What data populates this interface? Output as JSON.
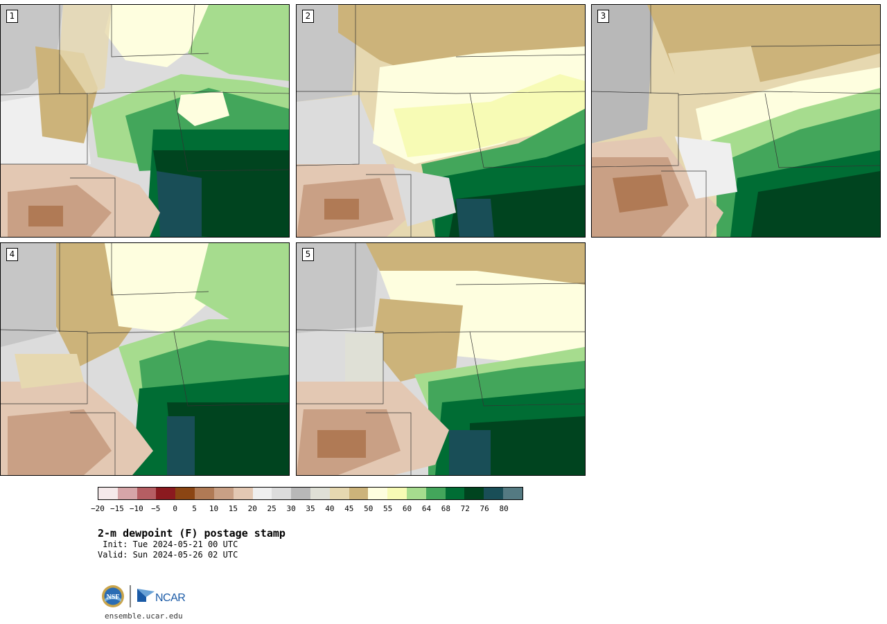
{
  "panels": [
    {
      "label": "1"
    },
    {
      "label": "2"
    },
    {
      "label": "3"
    },
    {
      "label": "4"
    },
    {
      "label": "5"
    }
  ],
  "colorbar": {
    "colors": [
      "#f5e9ea",
      "#d6a5a8",
      "#b55e63",
      "#8b1a1f",
      "#8b4513",
      "#b07a55",
      "#c9a085",
      "#e3c8b3",
      "#efefef",
      "#dcdcdc",
      "#b8b8b8",
      "#dfe0d6",
      "#e6d8b0",
      "#ccb37a",
      "#fefedf",
      "#f7fbb5",
      "#a6dc8e",
      "#43a65b",
      "#006d34",
      "#00441f",
      "#194e57",
      "#547a82"
    ],
    "tick_labels": [
      "−20",
      "−15",
      "−10",
      "−5",
      "0",
      "5",
      "10",
      "15",
      "20",
      "25",
      "30",
      "35",
      "40",
      "45",
      "50",
      "55",
      "60",
      "64",
      "68",
      "72",
      "76",
      "80"
    ]
  },
  "title": "2-m dewpoint (F) postage stamp",
  "init": " Init: Tue 2024-05-21 00 UTC",
  "valid": "Valid: Sun 2024-05-26 02 UTC",
  "logos": {
    "left": "NSF",
    "right": "NCAR"
  },
  "website": "ensemble.ucar.edu"
}
